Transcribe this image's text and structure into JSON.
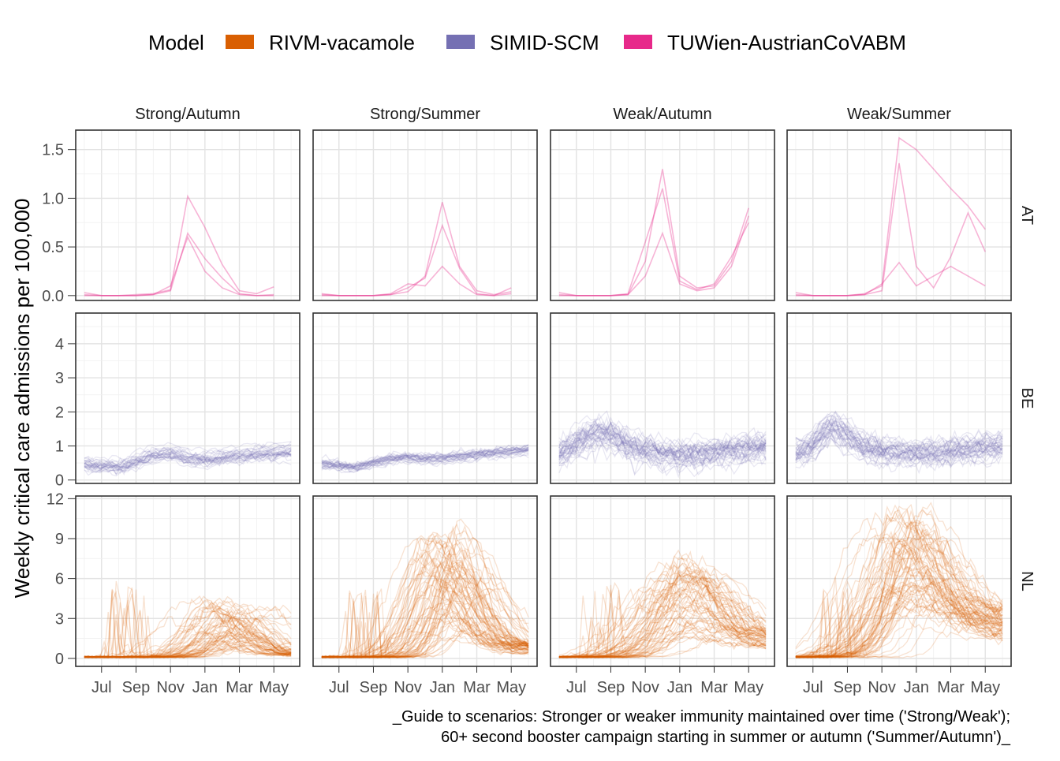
{
  "chart_data": {
    "type": "line",
    "title": "",
    "ylabel": "Weekly critical care admissions per 100,000",
    "xlabel": "",
    "caption_lines": [
      "_Guide to scenarios: Stronger or weaker immunity maintained over time ('Strong/Weak');",
      "60+ second booster campaign starting in summer or autumn ('Summer/Autumn')_"
    ],
    "legend": {
      "title": "Model",
      "position": "top",
      "entries": [
        {
          "name": "RIVM-vacamole",
          "color": "#D95F02"
        },
        {
          "name": "SIMID-SCM",
          "color": "#7570B3"
        },
        {
          "name": "TUWien-AustrianCoVABM",
          "color": "#E7298A"
        }
      ]
    },
    "facet_columns": [
      "Strong/Autumn",
      "Strong/Summer",
      "Weak/Autumn",
      "Weak/Summer"
    ],
    "facet_rows": [
      {
        "label": "AT",
        "model": "TUWien-AustrianCoVABM",
        "ylim": [
          -0.05,
          1.7
        ],
        "yticks": [
          "0.0",
          "0.5",
          "1.0",
          "1.5"
        ],
        "ytick_values": [
          0,
          0.5,
          1.0,
          1.5
        ]
      },
      {
        "label": "BE",
        "model": "SIMID-SCM",
        "ylim": [
          -0.1,
          4.9
        ],
        "yticks": [
          "0",
          "1",
          "2",
          "3",
          "4"
        ],
        "ytick_values": [
          0,
          1,
          2,
          3,
          4
        ]
      },
      {
        "label": "NL",
        "model": "RIVM-vacamole",
        "ylim": [
          -0.6,
          12.2
        ],
        "yticks": [
          "0",
          "3",
          "6",
          "9",
          "12"
        ],
        "ytick_values": [
          0,
          3,
          6,
          9,
          12
        ]
      }
    ],
    "x_ticks": [
      "Jul",
      "Sep",
      "Nov",
      "Jan",
      "Mar",
      "May"
    ],
    "x_tick_months": [
      1,
      3,
      5,
      7,
      9,
      11
    ],
    "x_range_months": [
      -0.5,
      12.5
    ],
    "x_start_month": "Jun",
    "grid": true,
    "series": [
      {
        "row": "AT",
        "col": "Strong/Autumn",
        "name": "TUWien-AustrianCoVABM",
        "x": [
          0,
          1,
          2,
          3,
          4,
          5,
          6,
          7,
          8,
          9,
          10,
          11
        ],
        "y": [
          0.03,
          0.0,
          0.0,
          0.0,
          0.01,
          0.05,
          0.64,
          0.38,
          0.18,
          0.02,
          0.0,
          0.01
        ]
      },
      {
        "row": "AT",
        "col": "Strong/Autumn",
        "name": "TUWien-AustrianCoVABM",
        "x": [
          0,
          1,
          2,
          3,
          4,
          5,
          6,
          7,
          8,
          9,
          10,
          11
        ],
        "y": [
          0.0,
          0.0,
          0.0,
          0.01,
          0.02,
          0.06,
          1.02,
          0.7,
          0.32,
          0.05,
          0.02,
          0.09
        ]
      },
      {
        "row": "AT",
        "col": "Strong/Autumn",
        "name": "TUWien-AustrianCoVABM",
        "x": [
          0,
          1,
          2,
          3,
          4,
          5,
          6,
          7,
          8,
          9,
          10,
          11
        ],
        "y": [
          0.01,
          0.0,
          0.0,
          0.0,
          0.01,
          0.1,
          0.6,
          0.25,
          0.08,
          0.01,
          0.0,
          0.0
        ]
      },
      {
        "row": "AT",
        "col": "Strong/Summer",
        "name": "TUWien-AustrianCoVABM",
        "x": [
          0,
          1,
          2,
          3,
          4,
          5,
          6,
          7,
          8,
          9,
          10,
          11
        ],
        "y": [
          0.02,
          0.0,
          0.0,
          0.0,
          0.01,
          0.04,
          0.2,
          0.96,
          0.3,
          0.05,
          0.01,
          0.04
        ]
      },
      {
        "row": "AT",
        "col": "Strong/Summer",
        "name": "TUWien-AustrianCoVABM",
        "x": [
          0,
          1,
          2,
          3,
          4,
          5,
          6,
          7,
          8,
          9,
          10,
          11
        ],
        "y": [
          0.01,
          0.0,
          0.0,
          0.0,
          0.01,
          0.08,
          0.18,
          0.72,
          0.28,
          0.02,
          0.0,
          0.08
        ]
      },
      {
        "row": "AT",
        "col": "Strong/Summer",
        "name": "TUWien-AustrianCoVABM",
        "x": [
          0,
          1,
          2,
          3,
          4,
          5,
          6,
          7,
          8,
          9,
          10,
          11
        ],
        "y": [
          0.0,
          0.0,
          0.0,
          0.0,
          0.02,
          0.12,
          0.1,
          0.3,
          0.12,
          0.01,
          0.0,
          0.02
        ]
      },
      {
        "row": "AT",
        "col": "Weak/Autumn",
        "name": "TUWien-AustrianCoVABM",
        "x": [
          0,
          1,
          2,
          3,
          4,
          5,
          6,
          7,
          8,
          9,
          10,
          11
        ],
        "y": [
          0.03,
          0.0,
          0.0,
          0.0,
          0.01,
          0.35,
          1.3,
          0.2,
          0.08,
          0.1,
          0.35,
          0.9
        ]
      },
      {
        "row": "AT",
        "col": "Weak/Autumn",
        "name": "TUWien-AustrianCoVABM",
        "x": [
          0,
          1,
          2,
          3,
          4,
          5,
          6,
          7,
          8,
          9,
          10,
          11
        ],
        "y": [
          0.0,
          0.0,
          0.0,
          0.0,
          0.01,
          0.2,
          0.64,
          0.12,
          0.05,
          0.08,
          0.3,
          0.82
        ]
      },
      {
        "row": "AT",
        "col": "Weak/Autumn",
        "name": "TUWien-AustrianCoVABM",
        "x": [
          0,
          1,
          2,
          3,
          4,
          5,
          6,
          7,
          8,
          9,
          10,
          11
        ],
        "y": [
          0.01,
          0.0,
          0.0,
          0.0,
          0.02,
          0.55,
          1.1,
          0.15,
          0.06,
          0.12,
          0.4,
          0.75
        ]
      },
      {
        "row": "AT",
        "col": "Weak/Summer",
        "name": "TUWien-AustrianCoVABM",
        "x": [
          0,
          1,
          2,
          3,
          4,
          5,
          6,
          7,
          8,
          9,
          10,
          11
        ],
        "y": [
          0.03,
          0.0,
          0.0,
          0.0,
          0.02,
          0.1,
          1.62,
          1.5,
          1.3,
          1.1,
          0.92,
          0.68
        ]
      },
      {
        "row": "AT",
        "col": "Weak/Summer",
        "name": "TUWien-AustrianCoVABM",
        "x": [
          0,
          1,
          2,
          3,
          4,
          5,
          6,
          7,
          8,
          9,
          10,
          11
        ],
        "y": [
          0.01,
          0.0,
          0.0,
          0.0,
          0.01,
          0.05,
          1.36,
          0.3,
          0.08,
          0.4,
          0.85,
          0.45
        ]
      },
      {
        "row": "AT",
        "col": "Weak/Summer",
        "name": "TUWien-AustrianCoVABM",
        "x": [
          0,
          1,
          2,
          3,
          4,
          5,
          6,
          7,
          8,
          9,
          10,
          11
        ],
        "y": [
          0.0,
          0.0,
          0.0,
          0.0,
          0.01,
          0.12,
          0.34,
          0.1,
          0.2,
          0.3,
          0.2,
          0.1
        ]
      }
    ],
    "ensembles": [
      {
        "row": "BE",
        "col": "Strong/Autumn",
        "name": "SIMID-SCM",
        "count": 30,
        "x_start": 0,
        "x_end": 12,
        "median": [
          [
            0,
            0.45
          ],
          [
            1,
            0.42
          ],
          [
            2,
            0.4
          ],
          [
            3,
            0.55
          ],
          [
            4,
            0.75
          ],
          [
            5,
            0.8
          ],
          [
            6,
            0.65
          ],
          [
            7,
            0.62
          ],
          [
            8,
            0.68
          ],
          [
            9,
            0.72
          ],
          [
            10,
            0.78
          ],
          [
            11,
            0.82
          ],
          [
            12,
            0.85
          ]
        ],
        "spread": 0.18
      },
      {
        "row": "BE",
        "col": "Strong/Summer",
        "name": "SIMID-SCM",
        "count": 30,
        "x_start": 0,
        "x_end": 12,
        "median": [
          [
            0,
            0.45
          ],
          [
            1,
            0.4
          ],
          [
            2,
            0.35
          ],
          [
            3,
            0.5
          ],
          [
            4,
            0.6
          ],
          [
            5,
            0.65
          ],
          [
            6,
            0.6
          ],
          [
            7,
            0.62
          ],
          [
            8,
            0.68
          ],
          [
            9,
            0.72
          ],
          [
            10,
            0.78
          ],
          [
            11,
            0.82
          ],
          [
            12,
            0.88
          ]
        ],
        "spread": 0.15
      },
      {
        "row": "BE",
        "col": "Weak/Autumn",
        "name": "SIMID-SCM",
        "count": 40,
        "x_start": 0,
        "x_end": 12,
        "median": [
          [
            0,
            0.8
          ],
          [
            1,
            1.1
          ],
          [
            2,
            1.4
          ],
          [
            3,
            1.35
          ],
          [
            4,
            1.05
          ],
          [
            5,
            0.9
          ],
          [
            6,
            0.8
          ],
          [
            7,
            0.75
          ],
          [
            8,
            0.78
          ],
          [
            9,
            0.85
          ],
          [
            10,
            0.9
          ],
          [
            11,
            0.95
          ],
          [
            12,
            1.0
          ]
        ],
        "spread": 0.35
      },
      {
        "row": "BE",
        "col": "Weak/Summer",
        "name": "SIMID-SCM",
        "count": 40,
        "x_start": 0,
        "x_end": 12,
        "median": [
          [
            0,
            0.8
          ],
          [
            1,
            1.0
          ],
          [
            2,
            1.6
          ],
          [
            3,
            1.3
          ],
          [
            4,
            0.95
          ],
          [
            5,
            0.85
          ],
          [
            6,
            0.8
          ],
          [
            7,
            0.78
          ],
          [
            8,
            0.8
          ],
          [
            9,
            0.85
          ],
          [
            10,
            0.9
          ],
          [
            11,
            0.95
          ],
          [
            12,
            0.98
          ]
        ],
        "spread": 0.3
      },
      {
        "row": "NL",
        "col": "Strong/Autumn",
        "name": "RIVM-vacamole",
        "count": 60,
        "x_start": 0,
        "x_end": 12,
        "peak_month": 8.3,
        "peak_min": 0.5,
        "peak_max": 4.5,
        "width": 1.8,
        "tail": 0.3
      },
      {
        "row": "NL",
        "col": "Strong/Summer",
        "name": "RIVM-vacamole",
        "count": 70,
        "x_start": 0,
        "x_end": 12,
        "peak_month": 7.2,
        "peak_min": 2.0,
        "peak_max": 10.0,
        "width": 1.6,
        "tail": 0.8
      },
      {
        "row": "NL",
        "col": "Weak/Autumn",
        "name": "RIVM-vacamole",
        "count": 60,
        "x_start": 0,
        "x_end": 12,
        "peak_month": 7.5,
        "peak_min": 1.0,
        "peak_max": 7.5,
        "width": 2.2,
        "tail": 1.5
      },
      {
        "row": "NL",
        "col": "Weak/Summer",
        "name": "RIVM-vacamole",
        "count": 70,
        "x_start": 0,
        "x_end": 12,
        "peak_month": 6.5,
        "peak_min": 3.0,
        "peak_max": 11.5,
        "width": 2.0,
        "tail": 2.8
      }
    ]
  }
}
